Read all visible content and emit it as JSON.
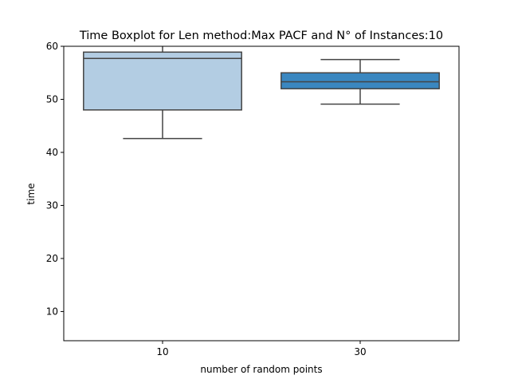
{
  "chart_data": {
    "type": "boxplot",
    "title": "Time Boxplot for Len method:Max PACF and N° of Instances:10",
    "xlabel": "number of random points",
    "ylabel": "time",
    "categories": [
      "10",
      "30"
    ],
    "ylim": [
      4.5,
      60
    ],
    "yticks": [
      10,
      20,
      30,
      40,
      50,
      60
    ],
    "grid": false,
    "boxes": [
      {
        "category": "10",
        "whisker_low": 42.6,
        "q1": 48.0,
        "median": 57.7,
        "q3": 58.9,
        "whisker_high": 60.5,
        "color": "#b3cde3"
      },
      {
        "category": "30",
        "whisker_low": 49.1,
        "q1": 52.0,
        "median": 53.3,
        "q3": 55.0,
        "whisker_high": 57.5,
        "color": "#3a87c0"
      }
    ],
    "line_color": "#444444"
  }
}
